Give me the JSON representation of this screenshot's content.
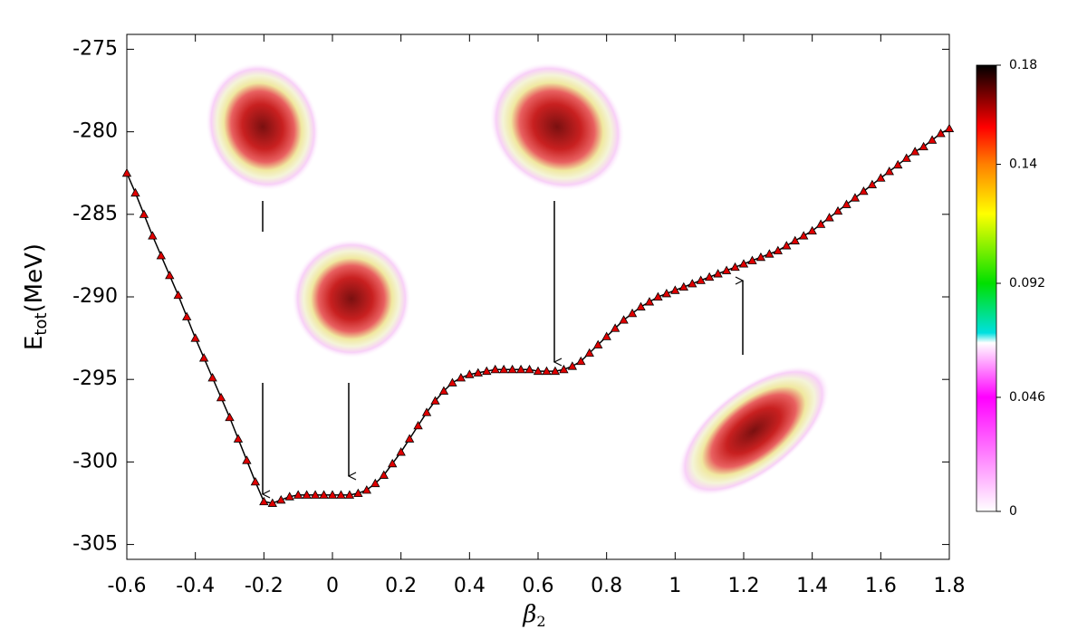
{
  "chart_data": {
    "type": "line",
    "ylabel": {
      "base": "E",
      "sub": "tot",
      "unit": "(MeV)"
    },
    "xlabel": {
      "base": "β",
      "sub": "2"
    },
    "x": [
      -0.6,
      -0.575,
      -0.55,
      -0.525,
      -0.5,
      -0.475,
      -0.45,
      -0.425,
      -0.4,
      -0.375,
      -0.35,
      -0.325,
      -0.3,
      -0.275,
      -0.25,
      -0.225,
      -0.2,
      -0.175,
      -0.15,
      -0.125,
      -0.1,
      -0.075,
      -0.05,
      -0.025,
      0,
      0.025,
      0.05,
      0.075,
      0.1,
      0.125,
      0.15,
      0.175,
      0.2,
      0.225,
      0.25,
      0.275,
      0.3,
      0.325,
      0.35,
      0.375,
      0.4,
      0.425,
      0.45,
      0.475,
      0.5,
      0.525,
      0.55,
      0.575,
      0.6,
      0.625,
      0.65,
      0.675,
      0.7,
      0.725,
      0.75,
      0.775,
      0.8,
      0.825,
      0.85,
      0.875,
      0.9,
      0.925,
      0.95,
      0.975,
      1,
      1.025,
      1.05,
      1.075,
      1.1,
      1.125,
      1.15,
      1.175,
      1.2,
      1.225,
      1.25,
      1.275,
      1.3,
      1.325,
      1.35,
      1.375,
      1.4,
      1.425,
      1.45,
      1.475,
      1.5,
      1.525,
      1.55,
      1.575,
      1.6,
      1.625,
      1.65,
      1.675,
      1.7,
      1.725,
      1.75,
      1.775,
      1.8
    ],
    "series": [
      {
        "color": "#e00000",
        "line_color": "#000000",
        "marker": "triangle",
        "values": [
          -282.5,
          -283.7,
          -285.0,
          -286.3,
          -287.5,
          -288.7,
          -289.9,
          -291.2,
          -292.5,
          -293.7,
          -294.9,
          -296.1,
          -297.3,
          -298.6,
          -299.9,
          -301.2,
          -302.4,
          -302.5,
          -302.3,
          -302.1,
          -302.0,
          -302.0,
          -302.0,
          -302.0,
          -302.0,
          -302.0,
          -302.0,
          -301.9,
          -301.7,
          -301.3,
          -300.8,
          -300.1,
          -299.4,
          -298.6,
          -297.8,
          -297.0,
          -296.3,
          -295.7,
          -295.2,
          -294.9,
          -294.7,
          -294.6,
          -294.5,
          -294.4,
          -294.4,
          -294.4,
          -294.4,
          -294.4,
          -294.5,
          -294.5,
          -294.5,
          -294.4,
          -294.2,
          -293.9,
          -293.4,
          -292.9,
          -292.4,
          -291.9,
          -291.4,
          -291.0,
          -290.6,
          -290.3,
          -290.0,
          -289.8,
          -289.6,
          -289.4,
          -289.2,
          -289.0,
          -288.8,
          -288.6,
          -288.4,
          -288.2,
          -288.0,
          -287.8,
          -287.6,
          -287.4,
          -287.2,
          -286.9,
          -286.6,
          -286.3,
          -286.0,
          -285.6,
          -285.2,
          -284.8,
          -284.4,
          -284.0,
          -283.6,
          -283.2,
          -282.8,
          -282.4,
          -282.0,
          -281.6,
          -281.2,
          -280.9,
          -280.5,
          -280.1,
          -279.8
        ]
      }
    ],
    "xlim": [
      -0.6,
      1.8
    ],
    "xticks": [
      -0.6,
      -0.4,
      -0.2,
      0,
      0.2,
      0.4,
      0.6,
      0.8,
      1,
      1.2,
      1.4,
      1.6,
      1.8
    ],
    "ylim": [
      -305.9,
      -274.1
    ],
    "yticks": [
      -305,
      -300,
      -295,
      -290,
      -285,
      -280,
      -275
    ],
    "grid": false,
    "colorbar": {
      "lim": [
        0,
        0.18
      ],
      "ticks": [
        0,
        0.046,
        0.092,
        0.14,
        0.18
      ],
      "colormap": [
        {
          "value": 0,
          "color": "#ffffff"
        },
        {
          "value": 0.046,
          "color": "#ff00ff"
        },
        {
          "value": 0.068,
          "color": "#ffffff"
        },
        {
          "value": 0.072,
          "color": "#00e0e0"
        },
        {
          "value": 0.092,
          "color": "#00e000"
        },
        {
          "value": 0.12,
          "color": "#ffff00"
        },
        {
          "value": 0.14,
          "color": "#ff8000"
        },
        {
          "value": 0.155,
          "color": "#ff0000"
        },
        {
          "value": 0.18,
          "color": "#000000"
        }
      ]
    }
  }
}
